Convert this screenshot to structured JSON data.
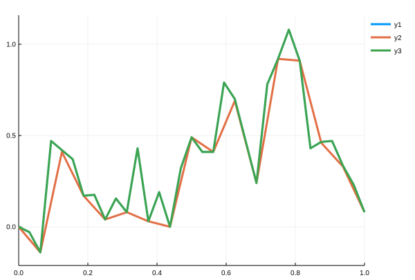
{
  "chart_data": {
    "type": "line",
    "title": "",
    "xlabel": "",
    "ylabel": "",
    "xlim": [
      0,
      1
    ],
    "ylim": [
      -0.212,
      1.159
    ],
    "grid": true,
    "legend_placement": "top-right",
    "xticks": [
      0.0,
      0.2,
      0.4,
      0.6,
      0.8,
      1.0
    ],
    "xtick_labels": [
      "0.0",
      "0.2",
      "0.4",
      "0.6",
      "0.8",
      "1.0"
    ],
    "yticks": [
      0.0,
      0.5,
      1.0
    ],
    "ytick_labels": [
      "0.0",
      "0.5",
      "1.0"
    ],
    "series": [
      {
        "name": "y1",
        "color": "#009af9",
        "x": [
          0,
          0.03125,
          0.0625,
          0.09375,
          0.125,
          0.15625,
          0.1875,
          0.21875,
          0.25,
          0.28125,
          0.3125,
          0.34375,
          0.375,
          0.40625,
          0.4375,
          0.46875,
          0.5,
          0.53125,
          0.5625,
          0.59375,
          0.625,
          0.65625,
          0.6875,
          0.71875,
          0.75,
          0.78125,
          0.8125,
          0.84375,
          0.875,
          0.90625,
          0.9375,
          0.96875,
          1.0
        ],
        "y": [
          0,
          -0.03,
          -0.14,
          0.47,
          0.42,
          0.37,
          0.17,
          0.175,
          0.04,
          0.155,
          0.08,
          0.43,
          0.03,
          0.19,
          0.0,
          0.32,
          0.49,
          0.41,
          0.41,
          0.79,
          0.7,
          0.47,
          0.24,
          0.78,
          0.92,
          1.08,
          0.91,
          0.43,
          0.465,
          0.47,
          0.335,
          0.23,
          0.08
        ]
      },
      {
        "name": "y2",
        "color": "#e26f46",
        "x": [
          0,
          0.0625,
          0.125,
          0.1875,
          0.25,
          0.3125,
          0.375,
          0.4375,
          0.5,
          0.5625,
          0.625,
          0.6875,
          0.75,
          0.8125,
          0.875,
          0.9375,
          1.0
        ],
        "y": [
          0,
          -0.14,
          0.41,
          0.17,
          0.04,
          0.08,
          0.03,
          0.0,
          0.49,
          0.41,
          0.69,
          0.24,
          0.92,
          0.91,
          0.46,
          0.33,
          0.08
        ]
      },
      {
        "name": "y3",
        "color": "#3da44d",
        "x": [
          0,
          0.03125,
          0.0625,
          0.09375,
          0.125,
          0.15625,
          0.1875,
          0.21875,
          0.25,
          0.28125,
          0.3125,
          0.34375,
          0.375,
          0.40625,
          0.4375,
          0.46875,
          0.5,
          0.53125,
          0.5625,
          0.59375,
          0.625,
          0.65625,
          0.6875,
          0.71875,
          0.75,
          0.78125,
          0.8125,
          0.84375,
          0.875,
          0.90625,
          0.9375,
          0.96875,
          1.0
        ],
        "y": [
          0,
          -0.03,
          -0.14,
          0.47,
          0.42,
          0.37,
          0.17,
          0.175,
          0.04,
          0.155,
          0.08,
          0.43,
          0.03,
          0.19,
          0.0,
          0.32,
          0.49,
          0.41,
          0.41,
          0.79,
          0.7,
          0.47,
          0.24,
          0.78,
          0.92,
          1.08,
          0.91,
          0.43,
          0.465,
          0.47,
          0.335,
          0.23,
          0.08
        ]
      }
    ]
  }
}
